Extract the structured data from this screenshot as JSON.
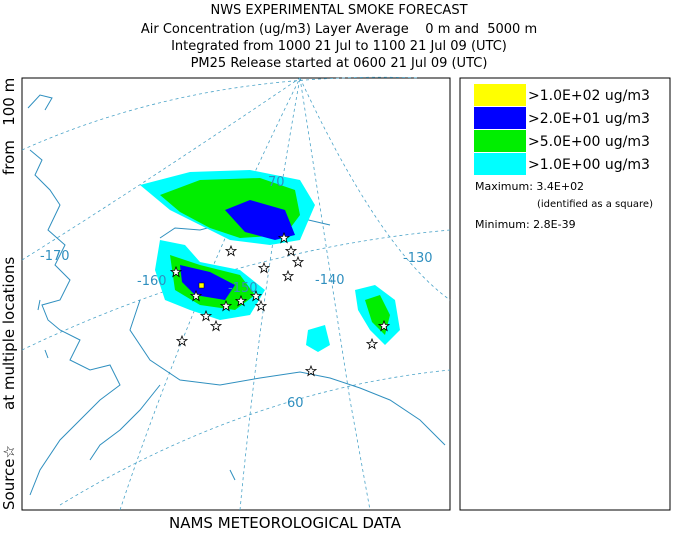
{
  "header": {
    "title": "NWS EXPERIMENTAL SMOKE FORECAST",
    "lines": [
      "Air Concentration (ug/m3) Layer Average    0 m and  5000 m",
      "Integrated from 1000 21 Jul to 1100 21 Jul 09 (UTC)",
      "PM25 Release started at 0600 21 Jul 09 (UTC)"
    ]
  },
  "side_label": {
    "source": "Source☆",
    "locations": "at multiple locations",
    "height": "from   100 m"
  },
  "footer": "NAMS METEOROLOGICAL DATA",
  "map": {
    "longitude_labels": [
      "-170",
      "-160",
      "-150",
      "-140",
      "-130"
    ],
    "latitude_labels": [
      "70",
      "60"
    ]
  },
  "legend": {
    "entries": [
      {
        "label": ">1.0E+02 ug/m3",
        "color": "#ffff00"
      },
      {
        "label": ">2.0E+01 ug/m3",
        "color": "#0000ff"
      },
      {
        "label": ">5.0E+00 ug/m3",
        "color": "#00ee00"
      },
      {
        "label": ">1.0E+00 ug/m3",
        "color": "#00ffff"
      }
    ],
    "maximum": "Maximum: 3.4E+02",
    "maximum_note": "(identified as a square)",
    "minimum": "Minimum: 2.8E-39"
  }
}
